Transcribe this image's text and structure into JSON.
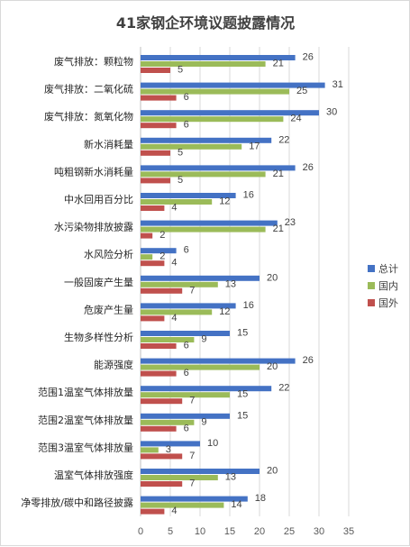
{
  "chart_data": {
    "type": "bar",
    "orientation": "horizontal",
    "title": "41家钢企环境议题披露情况",
    "categories": [
      "废气排放：颗粒物",
      "废气排放：二氧化硫",
      "废气排放：氮氧化物",
      "新水消耗量",
      "吨粗钢新水消耗量",
      "中水回用百分比",
      "水污染物排放披露",
      "水风险分析",
      "一般固废产生量",
      "危废产生量",
      "生物多样性分析",
      "能源强度",
      "范围1温室气体排放量",
      "范围2温室气体排放量",
      "范围3温室气体排放量",
      "温室气体排放强度",
      "净零排放/碳中和路径披露"
    ],
    "series": [
      {
        "name": "总计",
        "color": "#4472c4",
        "values": [
          26,
          31,
          30,
          22,
          26,
          16,
          23,
          6,
          20,
          16,
          15,
          26,
          22,
          15,
          10,
          20,
          18
        ]
      },
      {
        "name": "国内",
        "color": "#9bbb59",
        "values": [
          21,
          25,
          24,
          17,
          21,
          12,
          21,
          2,
          13,
          12,
          9,
          20,
          15,
          9,
          3,
          13,
          14
        ]
      },
      {
        "name": "国外",
        "color": "#c0504d",
        "values": [
          5,
          6,
          6,
          5,
          5,
          4,
          2,
          4,
          7,
          4,
          6,
          6,
          7,
          6,
          7,
          7,
          4
        ]
      }
    ],
    "xlim": [
      0,
      35
    ],
    "xticks": [
      0,
      5,
      10,
      15,
      20,
      25,
      30,
      35
    ],
    "grid": true,
    "legend": "right"
  }
}
